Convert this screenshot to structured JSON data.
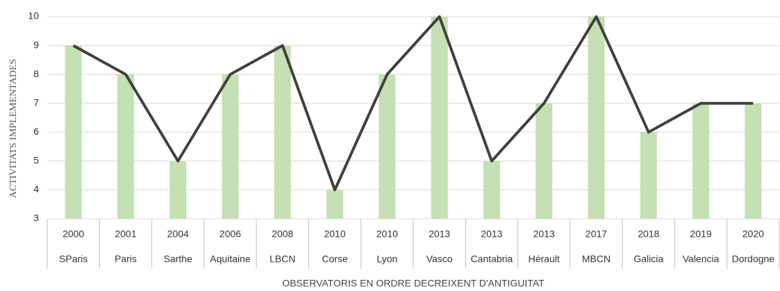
{
  "chart_data": {
    "type": "combo",
    "y_axis_label": "ACTIVITATS IMPLEMENTADES",
    "x_axis_label": "OBSERVATORIS EN ORDRE DECREIXENT D'ANTIGUITAT",
    "category_years": [
      "2000",
      "2001",
      "2004",
      "2006",
      "2008",
      "2010",
      "2010",
      "2013",
      "2013",
      "2013",
      "2017",
      "2018",
      "2019",
      "2020"
    ],
    "categories": [
      "SParis",
      "Paris",
      "Sarthe",
      "Aquitaine",
      "LBCN",
      "Corse",
      "Lyon",
      "Vasco",
      "Cantabria",
      "Hérault",
      "MBCN",
      "Galicia",
      "Valencia",
      "Dordogne"
    ],
    "values": [
      9,
      8,
      5,
      8,
      9,
      4,
      8,
      10,
      5,
      7,
      10,
      6,
      7,
      7
    ],
    "bar_color": "#c5e0b4",
    "line_color": "#404040",
    "ylim": [
      3,
      10
    ],
    "yticks": [
      3,
      4,
      5,
      6,
      7,
      8,
      9,
      10
    ],
    "grid": true
  }
}
